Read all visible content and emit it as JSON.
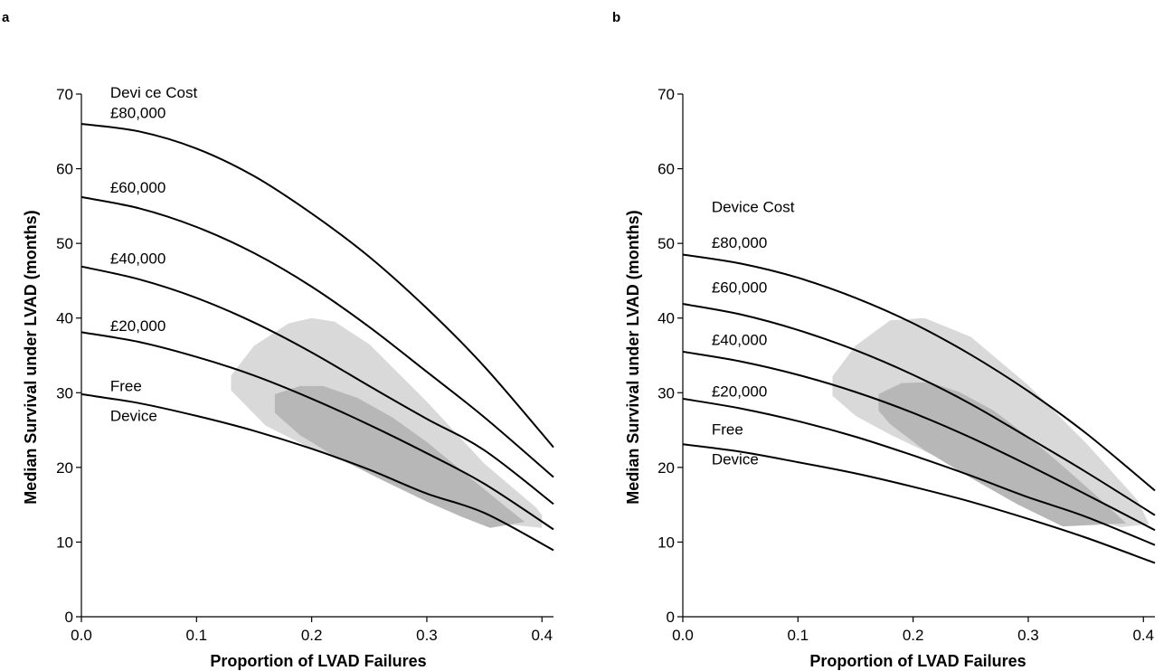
{
  "chart_data": [
    {
      "panel": "a",
      "type": "line",
      "xlabel": "Proportion of LVAD Failures",
      "ylabel": "Median Survival under LVAD (months)",
      "xlim": [
        0,
        0.41
      ],
      "ylim": [
        0,
        70
      ],
      "xticks": [
        0.0,
        0.1,
        0.2,
        0.3,
        0.4
      ],
      "xtick_labels": [
        "0.0",
        "0.1",
        "0.2",
        "0.3",
        "0.4"
      ],
      "yticks": [
        0,
        10,
        20,
        30,
        40,
        50,
        60,
        70
      ],
      "ytick_labels": [
        "0",
        "10",
        "20",
        "30",
        "40",
        "50",
        "60",
        "70"
      ],
      "grid": false,
      "annotations": {
        "header": "Devi ce Cost",
        "labels": [
          {
            "series": "£80,000",
            "lines": [
              "£80,000"
            ],
            "x": 0.025,
            "y": 66.8
          },
          {
            "series": "£60,000",
            "lines": [
              "£60,000"
            ],
            "x": 0.025,
            "y": 56.8
          },
          {
            "series": "£40,000",
            "lines": [
              "£40,000"
            ],
            "x": 0.025,
            "y": 47.3
          },
          {
            "series": "£20,000",
            "lines": [
              "£20,000"
            ],
            "x": 0.025,
            "y": 38.3
          },
          {
            "series": "Free Device",
            "lines": [
              "Free",
              "Device"
            ],
            "x": 0.025,
            "y": 30.2
          }
        ],
        "header_pos": {
          "x": 0.025,
          "y": 69.5
        }
      },
      "series": [
        {
          "name": "£80,000",
          "x": [
            0,
            0.05,
            0.1,
            0.15,
            0.2,
            0.25,
            0.3,
            0.35,
            0.41
          ],
          "y": [
            66,
            65,
            62.7,
            59,
            54,
            48.2,
            41.3,
            33.5,
            22.7
          ]
        },
        {
          "name": "£60,000",
          "x": [
            0,
            0.05,
            0.1,
            0.15,
            0.2,
            0.25,
            0.3,
            0.35,
            0.41
          ],
          "y": [
            56.2,
            54.7,
            52.2,
            48.7,
            44.2,
            38.8,
            32.8,
            26.7,
            18.7
          ]
        },
        {
          "name": "£40,000",
          "x": [
            0,
            0.05,
            0.1,
            0.15,
            0.2,
            0.25,
            0.3,
            0.35,
            0.41
          ],
          "y": [
            46.9,
            45.2,
            42.7,
            39.4,
            35.4,
            30.9,
            26.5,
            22.3,
            15.1
          ]
        },
        {
          "name": "£20,000",
          "x": [
            0,
            0.05,
            0.1,
            0.15,
            0.2,
            0.25,
            0.3,
            0.35,
            0.41
          ],
          "y": [
            38.1,
            36.8,
            34.8,
            32.3,
            29.2,
            25.7,
            21.9,
            17.8,
            11.7
          ]
        },
        {
          "name": "Free Device",
          "x": [
            0,
            0.05,
            0.1,
            0.15,
            0.2,
            0.25,
            0.3,
            0.35,
            0.41
          ],
          "y": [
            29.8,
            28.6,
            26.9,
            24.9,
            22.5,
            19.7,
            16.5,
            13.9,
            8.9
          ]
        }
      ],
      "regions": [
        {
          "shade": "light",
          "color": "#d9d9d9",
          "polygon": [
            [
              0.13,
              32.3
            ],
            [
              0.15,
              36.3
            ],
            [
              0.18,
              39.3
            ],
            [
              0.2,
              40
            ],
            [
              0.22,
              39.5
            ],
            [
              0.25,
              36.5
            ],
            [
              0.3,
              28.8
            ],
            [
              0.35,
              20.5
            ],
            [
              0.395,
              14.6
            ],
            [
              0.4,
              13.6
            ],
            [
              0.4,
              11.9
            ],
            [
              0.34,
              12.8
            ],
            [
              0.3,
              15.6
            ],
            [
              0.25,
              19.4
            ],
            [
              0.2,
              22.5
            ],
            [
              0.16,
              25.6
            ],
            [
              0.13,
              30.3
            ]
          ]
        },
        {
          "shade": "dark",
          "color": "#b7b7b7",
          "polygon": [
            [
              0.168,
              29.8
            ],
            [
              0.19,
              30.9
            ],
            [
              0.21,
              30.9
            ],
            [
              0.24,
              29.3
            ],
            [
              0.27,
              26.7
            ],
            [
              0.3,
              23.4
            ],
            [
              0.33,
              19.6
            ],
            [
              0.36,
              15.8
            ],
            [
              0.385,
              12.7
            ],
            [
              0.355,
              11.9
            ],
            [
              0.33,
              13.4
            ],
            [
              0.3,
              15.4
            ],
            [
              0.26,
              18.4
            ],
            [
              0.22,
              21.5
            ],
            [
              0.19,
              24.3
            ],
            [
              0.168,
              27.3
            ]
          ]
        }
      ]
    },
    {
      "panel": "b",
      "type": "line",
      "xlabel": "Proportion of LVAD Failures",
      "ylabel": "Median Survival under LVAD (months)",
      "xlim": [
        0,
        0.41
      ],
      "ylim": [
        0,
        70
      ],
      "xticks": [
        0.0,
        0.1,
        0.2,
        0.3,
        0.4
      ],
      "xtick_labels": [
        "0.0",
        "0.1",
        "0.2",
        "0.3",
        "0.4"
      ],
      "yticks": [
        0,
        10,
        20,
        30,
        40,
        50,
        60,
        70
      ],
      "ytick_labels": [
        "0",
        "10",
        "20",
        "30",
        "40",
        "50",
        "60",
        "70"
      ],
      "grid": false,
      "annotations": {
        "header": "Device Cost",
        "labels": [
          {
            "series": "£80,000",
            "lines": [
              "£80,000"
            ],
            "x": 0.025,
            "y": 49.4
          },
          {
            "series": "£60,000",
            "lines": [
              "£60,000"
            ],
            "x": 0.025,
            "y": 43.4
          },
          {
            "series": "£40,000",
            "lines": [
              "£40,000"
            ],
            "x": 0.025,
            "y": 36.4
          },
          {
            "series": "£20,000",
            "lines": [
              "£20,000"
            ],
            "x": 0.025,
            "y": 29.5
          },
          {
            "series": "Free Device",
            "lines": [
              "Free",
              "Device"
            ],
            "x": 0.025,
            "y": 24.4
          }
        ],
        "header_pos": {
          "x": 0.025,
          "y": 54.2
        }
      },
      "series": [
        {
          "name": "£80,000",
          "x": [
            0,
            0.05,
            0.1,
            0.15,
            0.2,
            0.25,
            0.3,
            0.35,
            0.41
          ],
          "y": [
            48.5,
            47.3,
            45.4,
            42.7,
            39.3,
            35.1,
            30.2,
            24.6,
            16.9
          ]
        },
        {
          "name": "£60,000",
          "x": [
            0,
            0.05,
            0.1,
            0.15,
            0.2,
            0.25,
            0.3,
            0.35,
            0.41
          ],
          "y": [
            41.9,
            40.5,
            38.4,
            35.7,
            32.4,
            28.5,
            24,
            19.4,
            13.6
          ]
        },
        {
          "name": "£40,000",
          "x": [
            0,
            0.05,
            0.1,
            0.15,
            0.2,
            0.25,
            0.3,
            0.35,
            0.41
          ],
          "y": [
            35.5,
            34.2,
            32.4,
            30.1,
            27.3,
            24,
            20.3,
            16.4,
            11.6
          ]
        },
        {
          "name": "£20,000",
          "x": [
            0,
            0.05,
            0.1,
            0.15,
            0.2,
            0.25,
            0.3,
            0.35,
            0.41
          ],
          "y": [
            29.2,
            27.9,
            26.2,
            24.1,
            21.6,
            18.9,
            16,
            13.4,
            9.6
          ]
        },
        {
          "name": "Free Device",
          "x": [
            0,
            0.05,
            0.1,
            0.15,
            0.2,
            0.25,
            0.3,
            0.35,
            0.41
          ],
          "y": [
            23.1,
            22.1,
            20.7,
            19.2,
            17.4,
            15.4,
            13.1,
            10.6,
            7.2
          ]
        }
      ],
      "regions": [
        {
          "shade": "light",
          "color": "#d9d9d9",
          "polygon": [
            [
              0.13,
              32.2
            ],
            [
              0.15,
              36.3
            ],
            [
              0.18,
              39.7
            ],
            [
              0.21,
              40
            ],
            [
              0.25,
              37.5
            ],
            [
              0.3,
              31
            ],
            [
              0.35,
              23.3
            ],
            [
              0.395,
              15.6
            ],
            [
              0.405,
              12.4
            ],
            [
              0.38,
              12
            ],
            [
              0.33,
              14.2
            ],
            [
              0.28,
              17.2
            ],
            [
              0.23,
              20.7
            ],
            [
              0.18,
              24.4
            ],
            [
              0.15,
              26.9
            ],
            [
              0.13,
              29.6
            ]
          ]
        },
        {
          "shade": "dark",
          "color": "#b7b7b7",
          "polygon": [
            [
              0.17,
              29.8
            ],
            [
              0.19,
              31.3
            ],
            [
              0.215,
              31.4
            ],
            [
              0.24,
              30.1
            ],
            [
              0.27,
              27.6
            ],
            [
              0.3,
              24.1
            ],
            [
              0.33,
              20.2
            ],
            [
              0.36,
              16.1
            ],
            [
              0.385,
              12.5
            ],
            [
              0.33,
              12.1
            ],
            [
              0.29,
              15.1
            ],
            [
              0.25,
              18.6
            ],
            [
              0.21,
              22.3
            ],
            [
              0.18,
              25.8
            ],
            [
              0.17,
              27.6
            ]
          ]
        }
      ]
    }
  ]
}
